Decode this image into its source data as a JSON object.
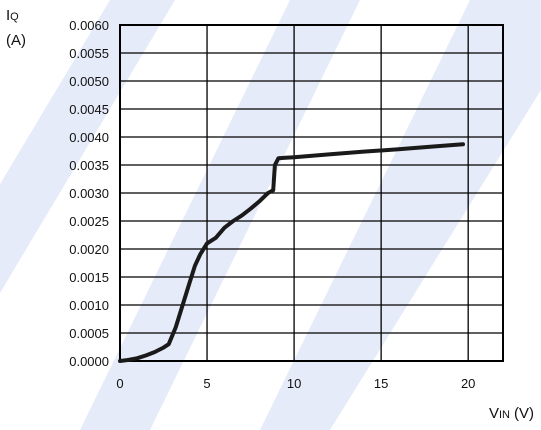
{
  "chart_data": {
    "type": "line",
    "y_axis_label": {
      "symbol": "I",
      "subscript": "Q",
      "unit": "(A)"
    },
    "x_axis_label": {
      "symbol": "V",
      "subscript": "IN",
      "unit": "(V)"
    },
    "xlim": [
      0,
      22
    ],
    "ylim": [
      0,
      0.006
    ],
    "x_ticks": [
      "0",
      "5",
      "10",
      "15",
      "20"
    ],
    "y_ticks": [
      "0.0000",
      "0.0005",
      "0.0010",
      "0.0015",
      "0.0020",
      "0.0025",
      "0.0030",
      "0.0035",
      "0.0040",
      "0.0045",
      "0.0050",
      "0.0055",
      "0.0060"
    ],
    "grid": true,
    "series": [
      {
        "x": [
          0,
          0.5,
          1,
          1.5,
          2,
          2.5,
          2.8,
          3.2,
          3.5,
          3.7,
          4.0,
          4.3,
          4.6,
          5.0,
          5.5,
          6.0,
          6.5,
          7.0,
          7.5,
          8.0,
          8.5,
          8.8,
          8.9,
          9.1,
          9.5,
          10,
          12,
          14,
          16,
          18,
          19.7
        ],
        "y": [
          0,
          2e-05,
          5e-05,
          0.0001,
          0.00016,
          0.00024,
          0.0003,
          0.0006,
          0.0009,
          0.0011,
          0.0014,
          0.0017,
          0.0019,
          0.0021,
          0.0022,
          0.00238,
          0.0025,
          0.0026,
          0.00272,
          0.00285,
          0.003,
          0.00305,
          0.0035,
          0.00362,
          0.00363,
          0.00364,
          0.00369,
          0.00374,
          0.00378,
          0.00383,
          0.00387
        ]
      }
    ],
    "colors": {
      "line": "#1a1a1a",
      "grid": "#000000",
      "watermark": "#dde4f8"
    }
  }
}
